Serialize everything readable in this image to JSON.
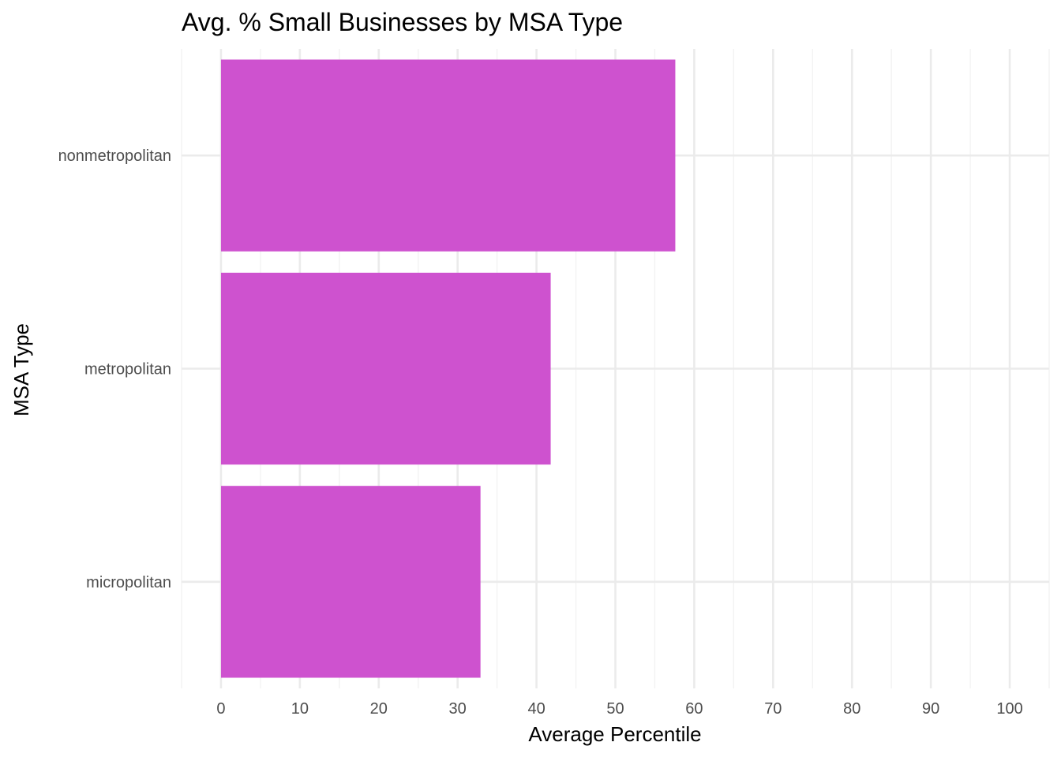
{
  "chart_data": {
    "type": "bar",
    "orientation": "horizontal",
    "title": "Avg. % Small Businesses by MSA Type",
    "xlabel": "Average Percentile",
    "ylabel": "MSA Type",
    "categories": [
      "nonmetropolitan",
      "metropolitan",
      "micropolitan"
    ],
    "values": [
      57.6,
      41.8,
      32.9
    ],
    "xlim": [
      -5,
      105
    ],
    "xticks": [
      0,
      10,
      20,
      30,
      40,
      50,
      60,
      70,
      80,
      90,
      100
    ],
    "bar_color": "#CE52CF",
    "grid": true,
    "legend": "none"
  }
}
